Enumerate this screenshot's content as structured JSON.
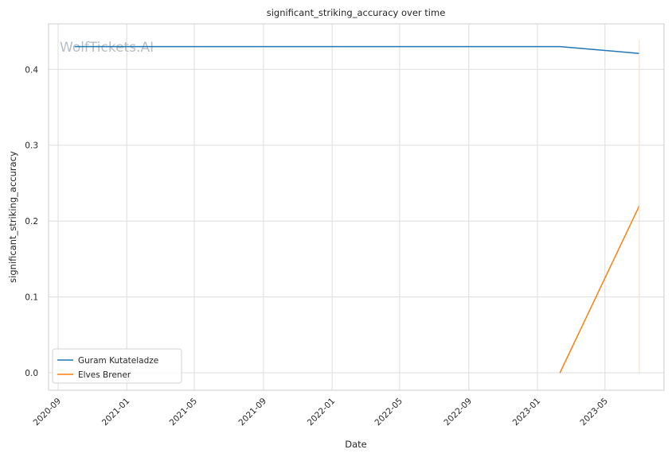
{
  "chart_data": {
    "type": "line",
    "title": "significant_striking_accuracy over time",
    "xlabel": "Date",
    "ylabel": "significant_striking_accuracy",
    "x_type": "date",
    "xlim": [
      "2020-08-15",
      "2023-08-14"
    ],
    "ylim": [
      -0.023,
      0.46
    ],
    "x_ticks": [
      "2020-09",
      "2021-01",
      "2021-05",
      "2021-09",
      "2022-01",
      "2022-05",
      "2022-09",
      "2023-01",
      "2023-05"
    ],
    "y_ticks": [
      "0.0",
      "0.1",
      "0.2",
      "0.3",
      "0.4"
    ],
    "grid": true,
    "legend_position": "lower-left",
    "watermark": "WolfTickets.AI",
    "series": [
      {
        "name": "Guram Kutateladze",
        "color": "#1f77b4",
        "points": [
          {
            "x": "2020-10-01",
            "y": 0.43
          },
          {
            "x": "2023-02-10",
            "y": 0.43
          },
          {
            "x": "2023-07-01",
            "y": 0.421
          }
        ]
      },
      {
        "name": "Elves Brener",
        "color": "#ff7f0e",
        "points": [
          {
            "x": "2023-02-10",
            "y": 0.0
          },
          {
            "x": "2023-07-01",
            "y": 0.22
          }
        ]
      }
    ]
  }
}
